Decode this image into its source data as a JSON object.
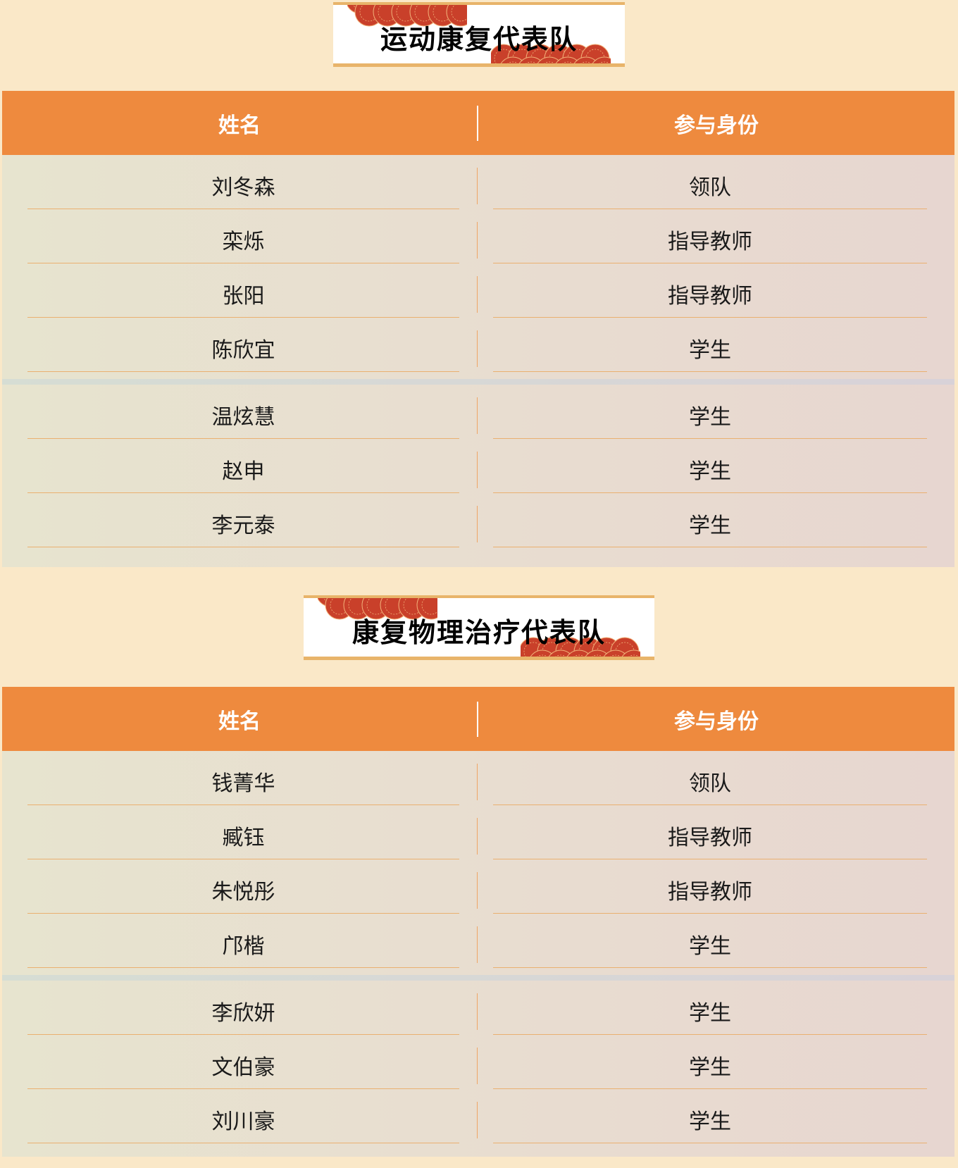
{
  "sections": [
    {
      "title": "运动康复代表队",
      "headers": {
        "name": "姓名",
        "role": "参与身份"
      },
      "groups": [
        [
          {
            "name": "刘冬森",
            "role": "领队"
          },
          {
            "name": "栾烁",
            "role": "指导教师"
          },
          {
            "name": "张阳",
            "role": "指导教师"
          },
          {
            "name": "陈欣宜",
            "role": "学生"
          }
        ],
        [
          {
            "name": "温炫慧",
            "role": "学生"
          },
          {
            "name": "赵申",
            "role": "学生"
          },
          {
            "name": "李元泰",
            "role": "学生"
          }
        ]
      ]
    },
    {
      "title": "康复物理治疗代表队",
      "headers": {
        "name": "姓名",
        "role": "参与身份"
      },
      "groups": [
        [
          {
            "name": "钱菁华",
            "role": "领队"
          },
          {
            "name": "臧钰",
            "role": "指导教师"
          },
          {
            "name": "朱悦彤",
            "role": "指导教师"
          },
          {
            "name": "邝楷",
            "role": "学生"
          }
        ],
        [
          {
            "name": "李欣妍",
            "role": "学生"
          },
          {
            "name": "文伯豪",
            "role": "学生"
          },
          {
            "name": "刘川豪",
            "role": "学生"
          }
        ]
      ]
    }
  ],
  "colors": {
    "header": "#ee8a3e",
    "accent_line": "#e8b46a",
    "cloud": "#c9402a",
    "background": "#fae8c8"
  }
}
